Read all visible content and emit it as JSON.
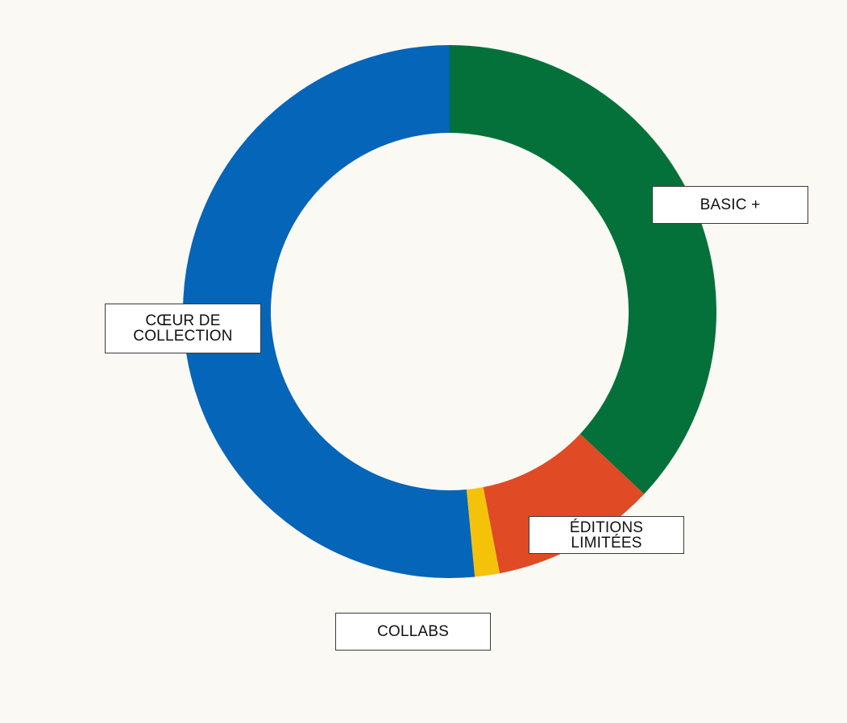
{
  "chart_data": {
    "type": "pie",
    "style": "donut",
    "title": "",
    "categories": [
      "BASIC +",
      "ÉDITIONS LIMITÉES",
      "COLLABS",
      "CŒUR DE\nCOLLECTION"
    ],
    "values": [
      37,
      10,
      1.5,
      51.5
    ],
    "colors": [
      "#05713a",
      "#e04a24",
      "#f5c20a",
      "#0565b8"
    ],
    "start_angle_deg": 0,
    "direction": "clockwise",
    "legend": "none"
  }
}
